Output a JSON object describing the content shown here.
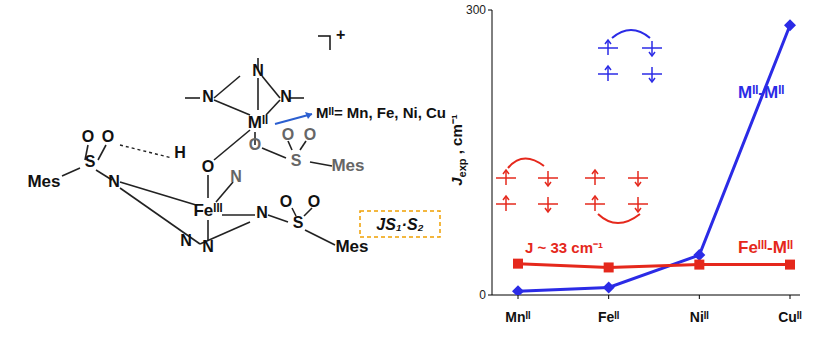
{
  "chart_data": {
    "type": "line",
    "ylabel": "J",
    "ylabel_sub": "exp",
    "ylabel_unit": " , cm⁻¹",
    "categories": [
      "Mnᴵᴵ",
      "Feᴵᴵ",
      "Niᴵᴵ",
      "Cuᴵᴵ"
    ],
    "ylim": [
      0,
      300
    ],
    "yticks": [
      0,
      300
    ],
    "grid": false,
    "annotation": "J ~ 33 cm⁻¹",
    "series": [
      {
        "name": "Mᴵᴵ-Mᴵᴵ",
        "color": "#2b2be6",
        "marker": "diamond",
        "values": [
          4,
          8,
          42,
          284
        ]
      },
      {
        "name": "Feᴵᴵᴵ-Mᴵᴵ",
        "color": "#e5281c",
        "marker": "square",
        "values": [
          33,
          29,
          32,
          32
        ]
      }
    ]
  },
  "structure": {
    "charge": "+",
    "metal_label": "Mᴵᴵ= Mn, Fe, Ni, Cu",
    "formula": "JS₁·S₂",
    "atoms": [
      "N",
      "N",
      "N",
      "Mᴵᴵ",
      "O",
      "S",
      "O",
      "O",
      "Mes",
      "O",
      "O",
      "H",
      "S",
      "Mes",
      "N",
      "O",
      "N",
      "Feᴵᴵᴵ",
      "N",
      "N",
      "N",
      "S",
      "O",
      "O",
      "Mes"
    ]
  }
}
